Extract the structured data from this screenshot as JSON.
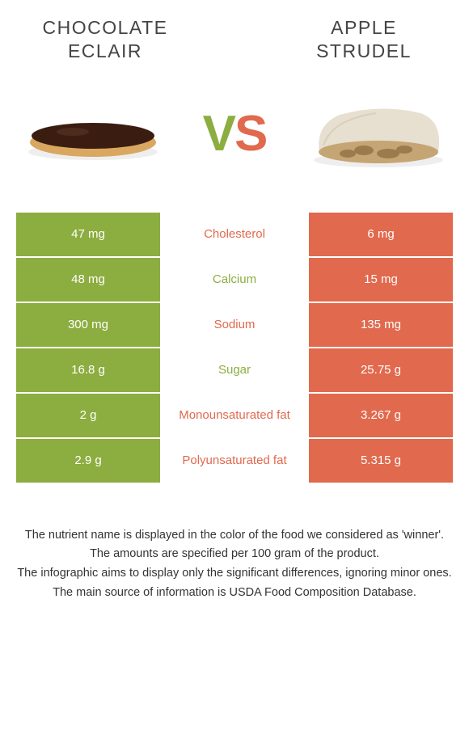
{
  "titles": {
    "left": "CHOCOLATE ECLAIR",
    "right": "APPLE STRUDEL"
  },
  "vs": {
    "v": "V",
    "s": "S"
  },
  "colors": {
    "left_bg": "#8cad3f",
    "right_bg": "#e1694d",
    "mid_bg": "#ffffff",
    "text_on_color": "#ffffff",
    "body_bg": "#ffffff"
  },
  "rows": [
    {
      "left": "47 mg",
      "label": "Cholesterol",
      "winner": "orange",
      "right": "6 mg"
    },
    {
      "left": "48 mg",
      "label": "Calcium",
      "winner": "green",
      "right": "15 mg"
    },
    {
      "left": "300 mg",
      "label": "Sodium",
      "winner": "orange",
      "right": "135 mg"
    },
    {
      "left": "16.8 g",
      "label": "Sugar",
      "winner": "green",
      "right": "25.75 g"
    },
    {
      "left": "2 g",
      "label": "Monounsaturated fat",
      "winner": "orange",
      "right": "3.267 g"
    },
    {
      "left": "2.9 g",
      "label": "Polyunsaturated fat",
      "winner": "orange",
      "right": "5.315 g"
    }
  ],
  "footer": [
    "The nutrient name is displayed in the color of the food we considered as 'winner'.",
    "The amounts are specified per 100 gram of the product.",
    "The infographic aims to display only the significant differences, ignoring minor ones.",
    "The main source of information is USDA Food Composition Database."
  ],
  "illustrations": {
    "eclair": {
      "top_color": "#3a1d10",
      "body_color": "#d9a760",
      "shadow": "#bbb"
    },
    "strudel": {
      "crust_color": "#e7dfcf",
      "filling_color": "#c6a574",
      "filling_dark": "#9b7a4e",
      "shadow": "#ccc"
    }
  }
}
